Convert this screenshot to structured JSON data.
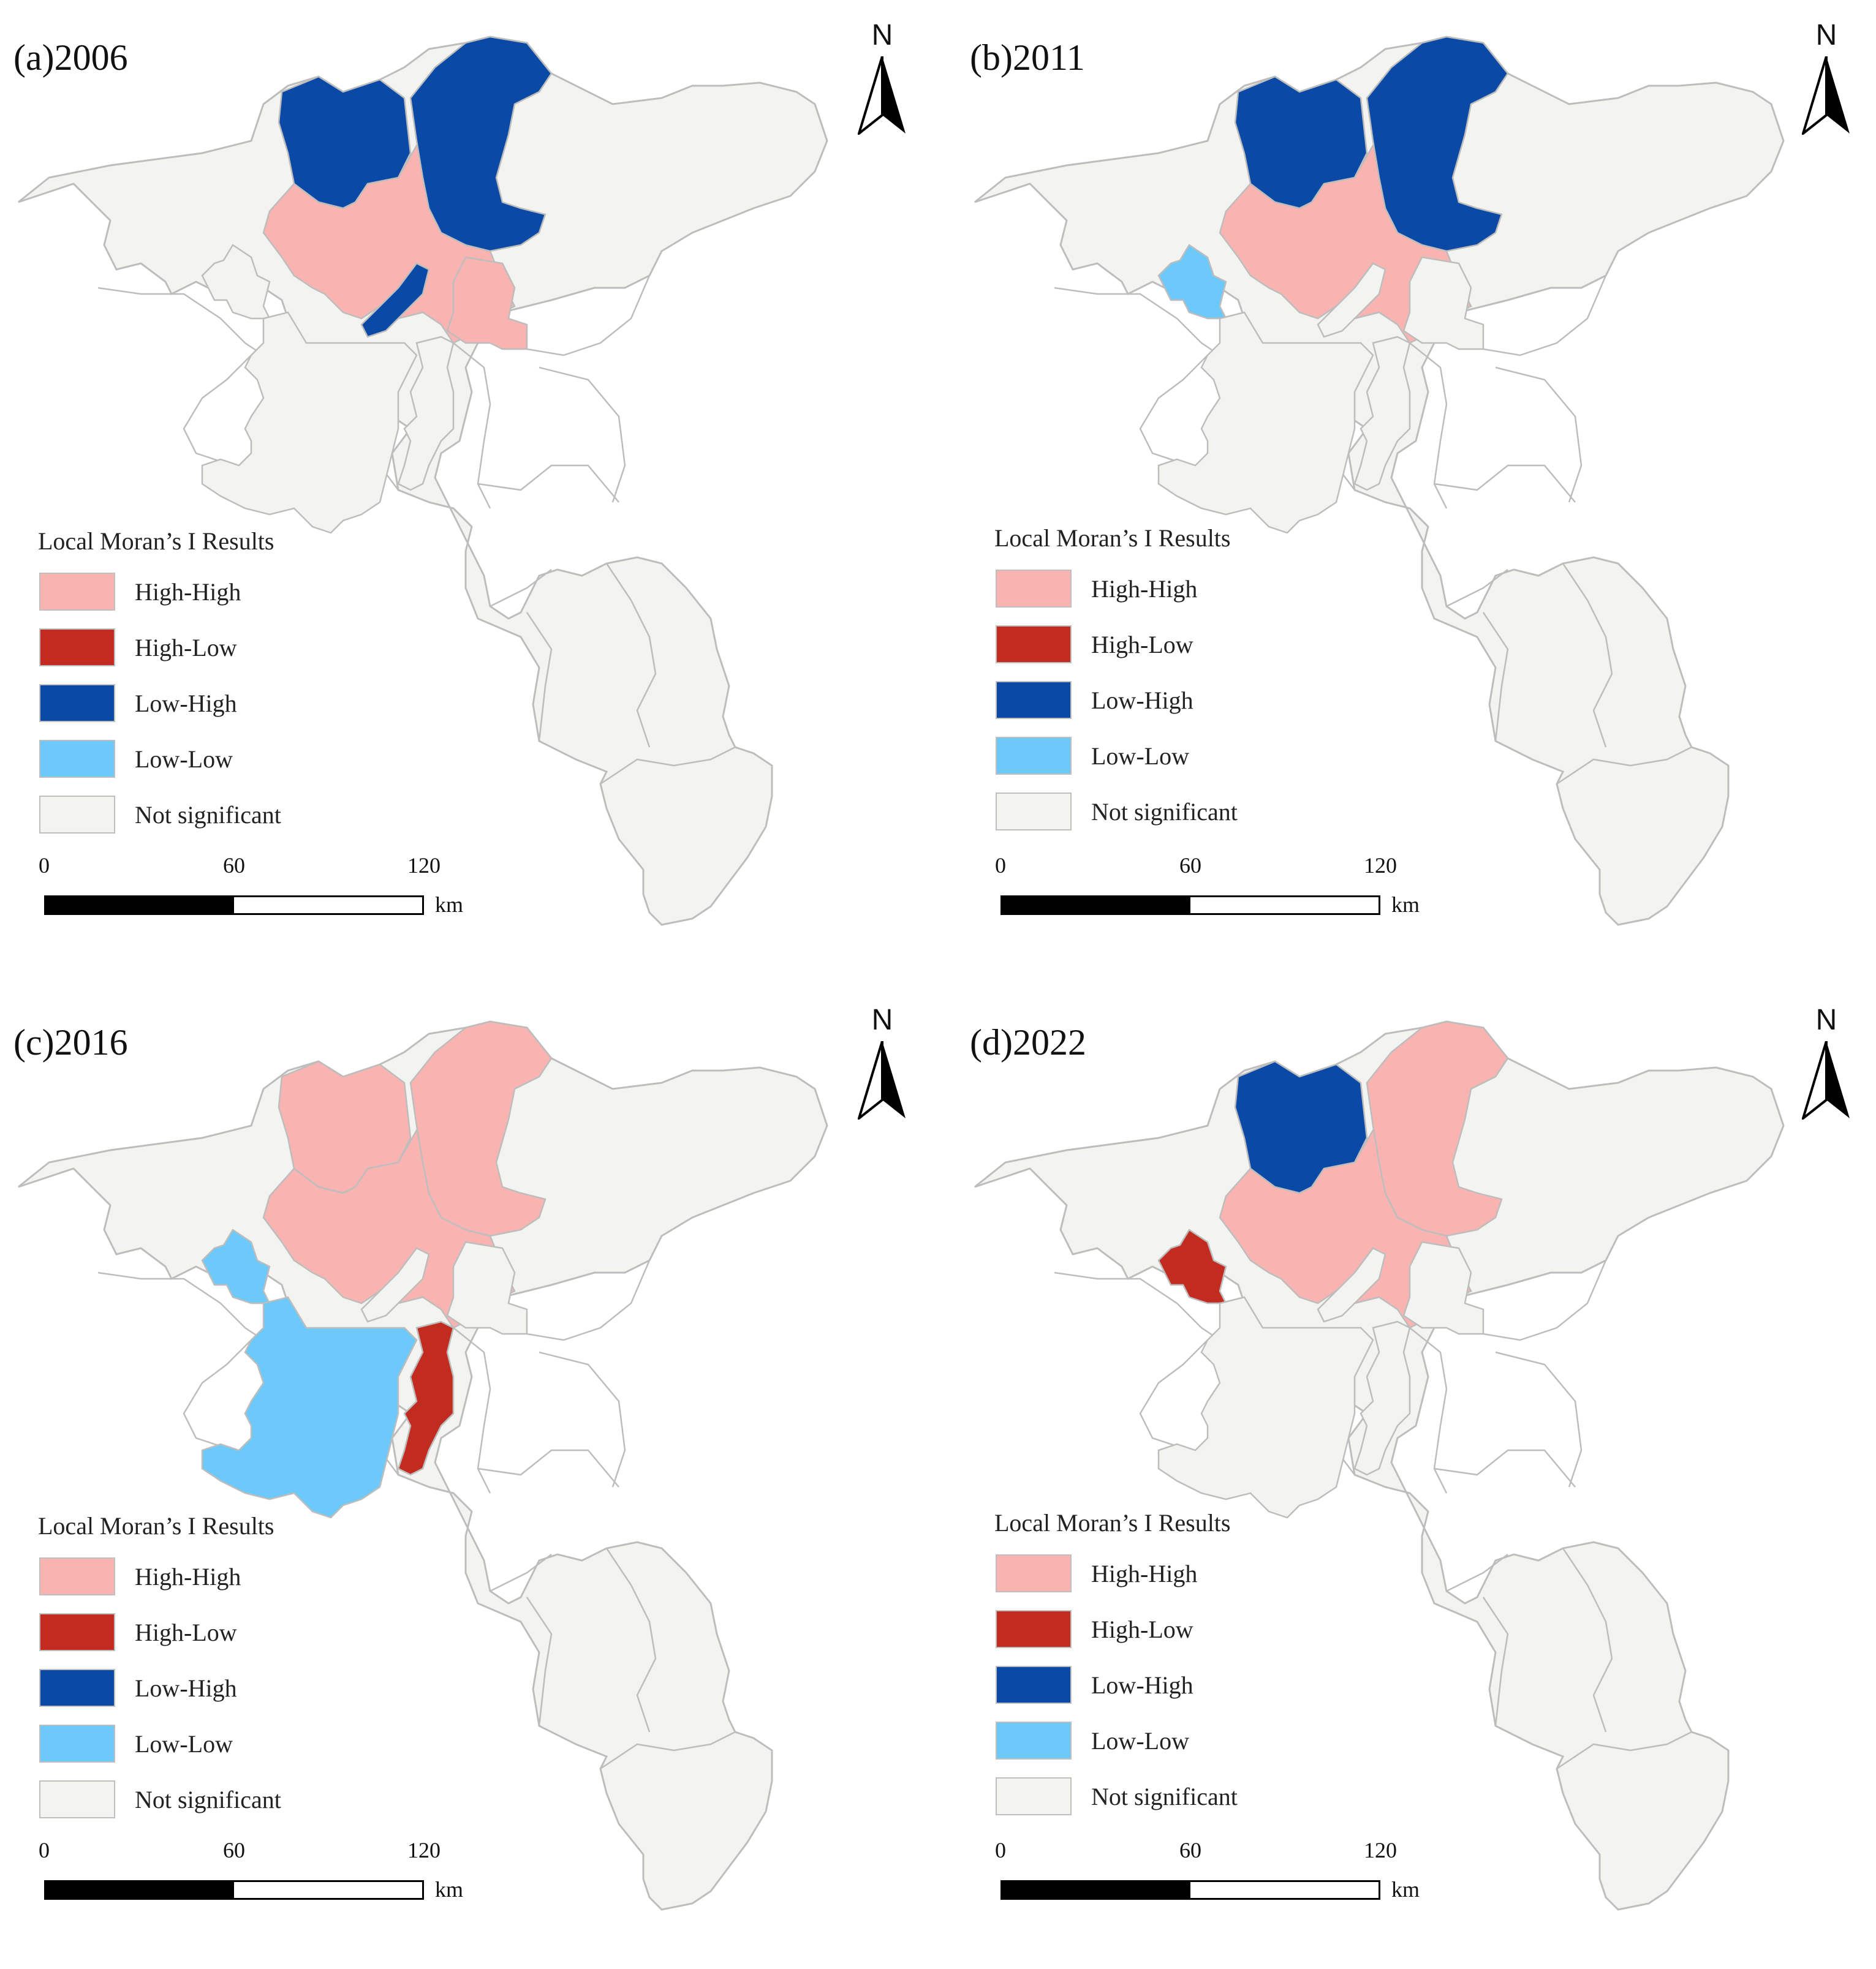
{
  "colors": {
    "high_high": "#f9b4b2",
    "high_low": "#c12b20",
    "low_high": "#0a4aa6",
    "low_low": "#6cc9f9",
    "not_significant": "#f3f3ef",
    "boundary": "#bdbdbd"
  },
  "legend": {
    "title": "Local Moran’s I Results",
    "items": [
      {
        "key": "high_high",
        "label": "High-High"
      },
      {
        "key": "high_low",
        "label": "High-Low"
      },
      {
        "key": "low_high",
        "label": "Low-High"
      },
      {
        "key": "low_low",
        "label": "Low-Low"
      },
      {
        "key": "not_significant",
        "label": "Not significant"
      }
    ]
  },
  "north_label": "N",
  "scale": {
    "ticks": [
      "0",
      "60",
      "120"
    ],
    "unit": "km"
  },
  "panels": [
    {
      "title": "(a)2006",
      "regions": {
        "north_west": "low_high",
        "north_east": "low_high",
        "central_north": "high_high",
        "strip": "low_high",
        "east_small": "high_high",
        "west_small": "not_significant",
        "south_west": "not_significant",
        "south_central": "not_significant"
      }
    },
    {
      "title": "(b)2011",
      "regions": {
        "north_west": "low_high",
        "north_east": "low_high",
        "central_north": "high_high",
        "strip": "not_significant",
        "east_small": "not_significant",
        "west_small": "low_low",
        "south_west": "not_significant",
        "south_central": "not_significant"
      }
    },
    {
      "title": "(c)2016",
      "regions": {
        "north_west": "high_high",
        "north_east": "high_high",
        "central_north": "high_high",
        "strip": "not_significant",
        "east_small": "not_significant",
        "west_small": "low_low",
        "south_west": "low_low",
        "south_central": "high_low"
      }
    },
    {
      "title": "(d)2022",
      "regions": {
        "north_west": "low_high",
        "north_east": "high_high",
        "central_north": "high_high",
        "strip": "not_significant",
        "east_small": "not_significant",
        "west_small": "high_low",
        "south_west": "not_significant",
        "south_central": "not_significant"
      }
    }
  ]
}
